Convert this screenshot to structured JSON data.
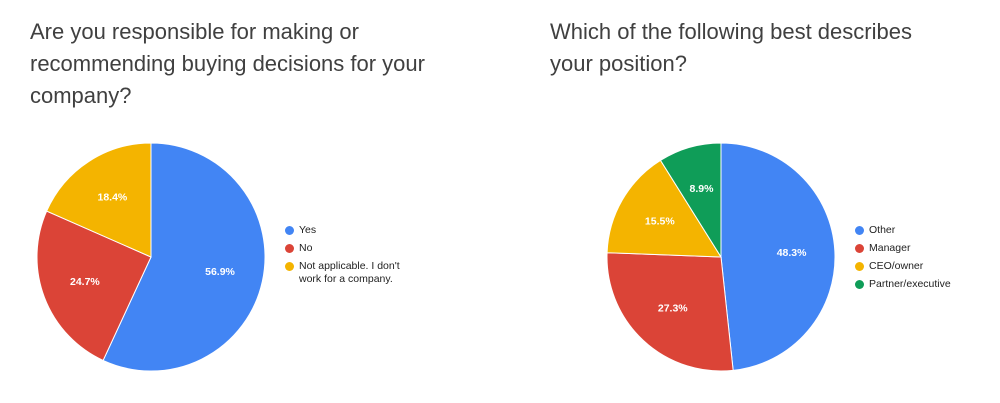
{
  "chart_data": [
    {
      "type": "pie",
      "title": "Are you responsible for making or recommending buying decisions for your company?",
      "categories": [
        "Yes",
        "No",
        "Not applicable. I don't work for a company."
      ],
      "values": [
        56.9,
        24.7,
        18.4
      ],
      "value_labels": [
        "56.9%",
        "24.7%",
        "18.4%"
      ],
      "colors": [
        "#4285f4",
        "#db4437",
        "#f4b400"
      ]
    },
    {
      "type": "pie",
      "title": "Which of the following best describes your position?",
      "categories": [
        "Other",
        "Manager",
        "CEO/owner",
        "Partner/executive"
      ],
      "values": [
        48.3,
        27.3,
        15.5,
        8.9
      ],
      "value_labels": [
        "48.3%",
        "27.3%",
        "15.5%",
        "8.9%"
      ],
      "colors": [
        "#4285f4",
        "#db4437",
        "#f4b400",
        "#0f9d58"
      ]
    }
  ]
}
